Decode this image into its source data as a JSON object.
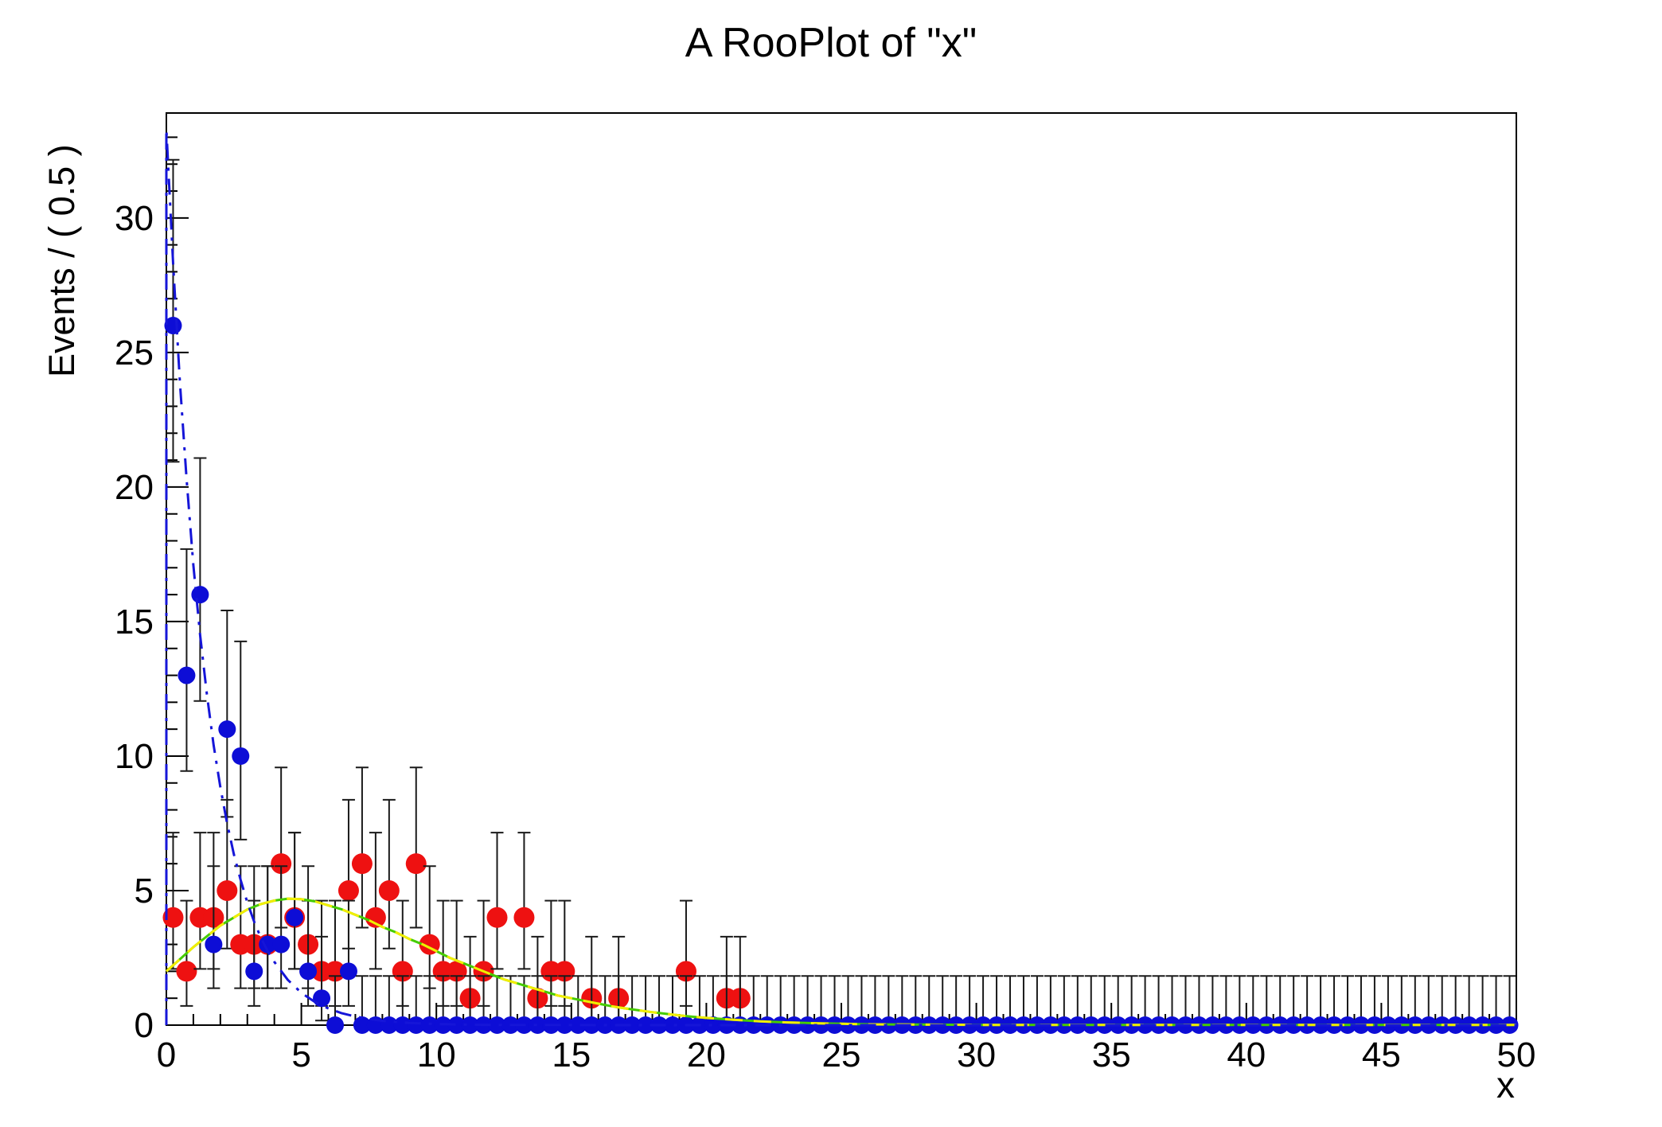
{
  "chart_data": {
    "type": "scatter",
    "title": "A RooPlot of \"x\"",
    "xlabel": "x",
    "ylabel": "Events / ( 0.5 )",
    "xlim": [
      0,
      50
    ],
    "ylim": [
      0,
      33.9
    ],
    "xticks": [
      0,
      5,
      10,
      15,
      20,
      25,
      30,
      35,
      40,
      45,
      50
    ],
    "yticks": [
      0,
      5,
      10,
      15,
      20,
      25,
      30
    ],
    "bin_width": 0.5,
    "grid": false,
    "legend": "none",
    "frame_color": "#000000",
    "error_bar_color": "#1a1a1a",
    "series": [
      {
        "name": "red-data-points",
        "kind": "points",
        "color": "#ee1111",
        "marker_radius": 13,
        "bin_start": 0.25,
        "bin_step": 0.5,
        "n_bins": 50,
        "draw_zeros": false,
        "errors": "poisson",
        "values": [
          4,
          2,
          4,
          4,
          5,
          3,
          3,
          3,
          6,
          4,
          3,
          2,
          2,
          5,
          6,
          4,
          5,
          2,
          6,
          3,
          2,
          2,
          1,
          2,
          4,
          0,
          4,
          1,
          2,
          2,
          0,
          1,
          0,
          1,
          0,
          0,
          0,
          0,
          2,
          0,
          0,
          1,
          1
        ]
      },
      {
        "name": "blue-data-points",
        "kind": "points",
        "color": "#0d0dd6",
        "marker_radius": 11,
        "bin_start": 0.25,
        "bin_step": 0.5,
        "n_bins": 100,
        "draw_zeros": true,
        "errors": "poisson",
        "values": [
          26,
          13,
          16,
          3,
          11,
          10,
          2,
          3,
          3,
          4,
          2,
          1,
          0,
          2
        ]
      },
      {
        "name": "green-model-curve",
        "kind": "curve",
        "color": "#46cc00",
        "width": 3,
        "dash": "",
        "points": [
          [
            0,
            2.0
          ],
          [
            0.5,
            2.45
          ],
          [
            1,
            2.9
          ],
          [
            1.5,
            3.3
          ],
          [
            2,
            3.7
          ],
          [
            2.5,
            4.0
          ],
          [
            3,
            4.3
          ],
          [
            3.5,
            4.5
          ],
          [
            4,
            4.63
          ],
          [
            4.5,
            4.7
          ],
          [
            5,
            4.68
          ],
          [
            5.5,
            4.6
          ],
          [
            6,
            4.45
          ],
          [
            6.5,
            4.3
          ],
          [
            7,
            4.1
          ],
          [
            7.5,
            3.9
          ],
          [
            8,
            3.65
          ],
          [
            8.5,
            3.45
          ],
          [
            9,
            3.2
          ],
          [
            9.5,
            3.0
          ],
          [
            10,
            2.75
          ],
          [
            10.5,
            2.5
          ],
          [
            11,
            2.3
          ],
          [
            11.5,
            2.1
          ],
          [
            12,
            1.9
          ],
          [
            12.5,
            1.7
          ],
          [
            13,
            1.55
          ],
          [
            13.5,
            1.4
          ],
          [
            14,
            1.25
          ],
          [
            14.5,
            1.1
          ],
          [
            15,
            1.0
          ],
          [
            15.5,
            0.9
          ],
          [
            16,
            0.8
          ],
          [
            16.5,
            0.7
          ],
          [
            17,
            0.62
          ],
          [
            17.5,
            0.55
          ],
          [
            18,
            0.48
          ],
          [
            18.5,
            0.42
          ],
          [
            19,
            0.36
          ],
          [
            19.5,
            0.31
          ],
          [
            20,
            0.27
          ],
          [
            21,
            0.2
          ],
          [
            22,
            0.14
          ],
          [
            23,
            0.1
          ],
          [
            24,
            0.07
          ],
          [
            25,
            0.05
          ],
          [
            26,
            0.03
          ],
          [
            28,
            0.02
          ],
          [
            30,
            0.01
          ],
          [
            35,
            0.01
          ],
          [
            40,
            0.01
          ],
          [
            45,
            0.01
          ],
          [
            50,
            0.01
          ]
        ]
      },
      {
        "name": "yellow-model-curve",
        "kind": "curve",
        "color": "#f2ee00",
        "width": 3,
        "dash": "22 14",
        "points_ref": "green-model-curve"
      },
      {
        "name": "blue-model-curve",
        "kind": "curve",
        "color": "#1515d8",
        "width": 3,
        "dash": "20 10 4 10",
        "points": [
          [
            0,
            0
          ],
          [
            0,
            33.3
          ],
          [
            0.25,
            28.3
          ],
          [
            0.5,
            23.9
          ],
          [
            0.75,
            20.3
          ],
          [
            1,
            17.1
          ],
          [
            1.25,
            14.5
          ],
          [
            1.5,
            12.3
          ],
          [
            1.75,
            10.4
          ],
          [
            2,
            8.85
          ],
          [
            2.25,
            7.5
          ],
          [
            2.5,
            6.35
          ],
          [
            2.75,
            5.4
          ],
          [
            3,
            4.55
          ],
          [
            3.25,
            3.85
          ],
          [
            3.5,
            3.25
          ],
          [
            3.75,
            2.75
          ],
          [
            4,
            2.35
          ],
          [
            4.5,
            1.68
          ],
          [
            5,
            1.2
          ],
          [
            5.5,
            0.86
          ],
          [
            6,
            0.62
          ],
          [
            6.5,
            0.44
          ],
          [
            7,
            0.32
          ],
          [
            7.5,
            0.23
          ],
          [
            8,
            0.16
          ],
          [
            9,
            0.08
          ],
          [
            10,
            0.04
          ],
          [
            11,
            0.02
          ],
          [
            12,
            0.01
          ],
          [
            14,
            0.01
          ],
          [
            16,
            0
          ],
          [
            20,
            0
          ],
          [
            25,
            0
          ],
          [
            30,
            0
          ],
          [
            40,
            0
          ],
          [
            50,
            0
          ]
        ]
      }
    ]
  }
}
